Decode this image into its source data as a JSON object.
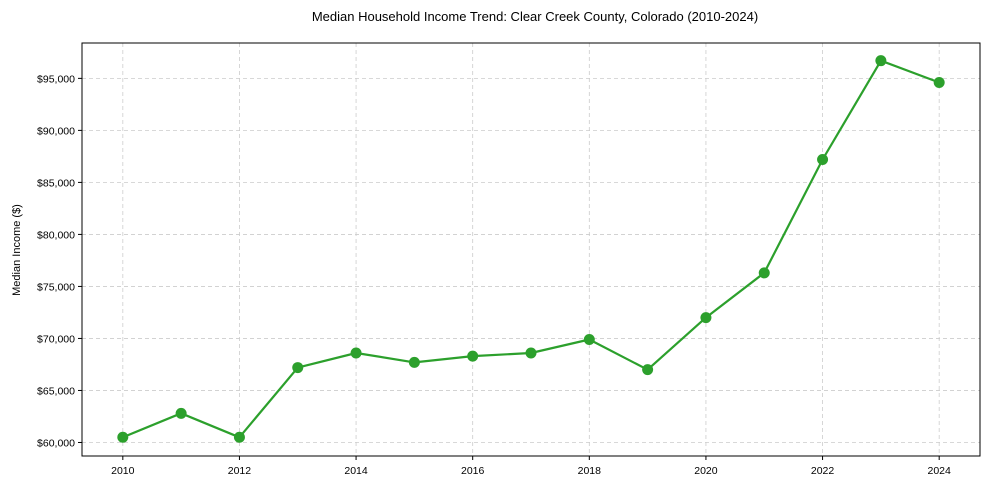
{
  "chart": {
    "title": "Median Household Income Trend: Clear Creek County, Colorado (2010-2024)",
    "ylabel": "Median Income ($)",
    "xlabel": "",
    "line_color": "#2ca02c",
    "grid_color": "#cccccc"
  },
  "chart_data": {
    "type": "line",
    "title": "Median Household Income Trend: Clear Creek County, Colorado (2010-2024)",
    "xlabel": "",
    "ylabel": "Median Income ($)",
    "x": [
      2010,
      2011,
      2012,
      2013,
      2014,
      2015,
      2016,
      2017,
      2018,
      2019,
      2020,
      2021,
      2022,
      2023,
      2024
    ],
    "series": [
      {
        "name": "Median Household Income",
        "color": "#2ca02c",
        "marker": "circle",
        "values": [
          60500,
          62800,
          60500,
          67200,
          68600,
          67700,
          68300,
          68600,
          69900,
          67000,
          72000,
          76300,
          87200,
          96700,
          94600
        ]
      }
    ],
    "xticks": [
      2010,
      2012,
      2014,
      2016,
      2018,
      2020,
      2022,
      2024
    ],
    "xtick_labels": [
      "2010",
      "2012",
      "2014",
      "2016",
      "2018",
      "2020",
      "2022",
      "2024"
    ],
    "yticks": [
      60000,
      65000,
      70000,
      75000,
      80000,
      85000,
      90000,
      95000
    ],
    "ytick_labels": [
      "$60,000",
      "$65,000",
      "$70,000",
      "$75,000",
      "$80,000",
      "$85,000",
      "$90,000",
      "$95,000"
    ],
    "xlim": [
      2009.3,
      2024.7
    ],
    "ylim": [
      58700,
      98400
    ],
    "grid": true,
    "grid_style": "dashed",
    "legend": null
  }
}
